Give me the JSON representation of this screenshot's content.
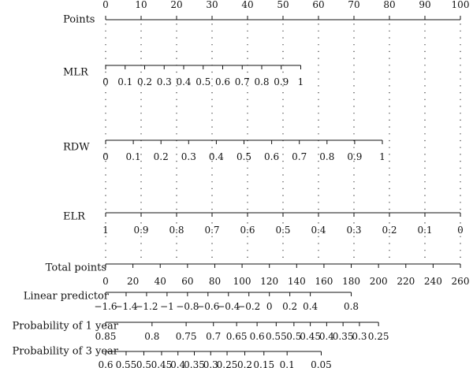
{
  "chart_data": {
    "type": "nomogram",
    "scales": [
      {
        "id": "points",
        "label": "Points",
        "kind": "top",
        "ticks": [
          {
            "text": "0",
            "v": 0
          },
          {
            "text": "10",
            "v": 10
          },
          {
            "text": "20",
            "v": 20
          },
          {
            "text": "30",
            "v": 30
          },
          {
            "text": "40",
            "v": 40
          },
          {
            "text": "50",
            "v": 50
          },
          {
            "text": "60",
            "v": 60
          },
          {
            "text": "70",
            "v": 70
          },
          {
            "text": "80",
            "v": 80
          },
          {
            "text": "90",
            "v": 90
          },
          {
            "text": "100",
            "v": 100
          }
        ]
      },
      {
        "id": "mlr",
        "label": "MLR",
        "kind": "variable",
        "ticks": [
          {
            "text": "0",
            "v": 0
          },
          {
            "text": "0.1",
            "v": 5.5
          },
          {
            "text": "0.2",
            "v": 11
          },
          {
            "text": "0.3",
            "v": 16.5
          },
          {
            "text": "0.4",
            "v": 22
          },
          {
            "text": "0.5",
            "v": 27.5
          },
          {
            "text": "0.6",
            "v": 33
          },
          {
            "text": "0.7",
            "v": 38.5
          },
          {
            "text": "0.8",
            "v": 44
          },
          {
            "text": "0.9",
            "v": 49.5
          },
          {
            "text": "1",
            "v": 55
          }
        ]
      },
      {
        "id": "rdw",
        "label": "RDW",
        "kind": "variable",
        "ticks": [
          {
            "text": "0",
            "v": 0
          },
          {
            "text": "0.1",
            "v": 7.8
          },
          {
            "text": "0.2",
            "v": 15.6
          },
          {
            "text": "0.3",
            "v": 23.4
          },
          {
            "text": "0.4",
            "v": 31.2
          },
          {
            "text": "0.5",
            "v": 39
          },
          {
            "text": "0.6",
            "v": 46.8
          },
          {
            "text": "0.7",
            "v": 54.6
          },
          {
            "text": "0.8",
            "v": 62.4
          },
          {
            "text": "0.9",
            "v": 70.2
          },
          {
            "text": "1",
            "v": 78
          }
        ]
      },
      {
        "id": "elr",
        "label": "ELR",
        "kind": "variable",
        "ticks": [
          {
            "text": "1",
            "v": 0
          },
          {
            "text": "0.9",
            "v": 10
          },
          {
            "text": "0.8",
            "v": 20
          },
          {
            "text": "0.7",
            "v": 30
          },
          {
            "text": "0.6",
            "v": 40
          },
          {
            "text": "0.5",
            "v": 50
          },
          {
            "text": "0.4",
            "v": 60
          },
          {
            "text": "0.3",
            "v": 70
          },
          {
            "text": "0.2",
            "v": 80
          },
          {
            "text": "0.1",
            "v": 90
          },
          {
            "text": "0",
            "v": 100
          }
        ]
      },
      {
        "id": "total_points",
        "label": "Total points",
        "kind": "total",
        "ticks": [
          {
            "text": "0",
            "v": 0
          },
          {
            "text": "20",
            "v": 20
          },
          {
            "text": "40",
            "v": 40
          },
          {
            "text": "60",
            "v": 60
          },
          {
            "text": "80",
            "v": 80
          },
          {
            "text": "100",
            "v": 100
          },
          {
            "text": "120",
            "v": 120
          },
          {
            "text": "140",
            "v": 140
          },
          {
            "text": "160",
            "v": 160
          },
          {
            "text": "180",
            "v": 180
          },
          {
            "text": "200",
            "v": 200
          },
          {
            "text": "220",
            "v": 220
          },
          {
            "text": "240",
            "v": 240
          },
          {
            "text": "260",
            "v": 260
          }
        ]
      },
      {
        "id": "linear_predictor",
        "label": "Linear predictor",
        "kind": "outcome",
        "ticks": [
          {
            "text": "−1.6",
            "v": 0
          },
          {
            "text": "−1.4",
            "v": 15
          },
          {
            "text": "−1.2",
            "v": 30
          },
          {
            "text": "−1",
            "v": 45
          },
          {
            "text": "−0.8",
            "v": 60
          },
          {
            "text": "−0.6",
            "v": 75
          },
          {
            "text": "−0.4",
            "v": 90
          },
          {
            "text": "−0.2",
            "v": 105
          },
          {
            "text": "0",
            "v": 120
          },
          {
            "text": "0.2",
            "v": 135
          },
          {
            "text": "0.4",
            "v": 150
          },
          {
            "text": "0.8",
            "v": 180
          }
        ]
      },
      {
        "id": "prob_1_year",
        "label": "Probability of 1 year",
        "kind": "outcome",
        "ticks": [
          {
            "text": "0.85",
            "v": 0
          },
          {
            "text": "0.8",
            "v": 34
          },
          {
            "text": "0.75",
            "v": 59
          },
          {
            "text": "0.7",
            "v": 79
          },
          {
            "text": "0.65",
            "v": 96
          },
          {
            "text": "0.6",
            "v": 111
          },
          {
            "text": "0.55",
            "v": 125
          },
          {
            "text": "0.5",
            "v": 138
          },
          {
            "text": "0.45",
            "v": 150
          },
          {
            "text": "0.4",
            "v": 162
          },
          {
            "text": "0.35",
            "v": 174
          },
          {
            "text": "0.3",
            "v": 186
          },
          {
            "text": "0.25",
            "v": 200
          }
        ]
      },
      {
        "id": "prob_3_year",
        "label": "Probability of 3 year",
        "kind": "outcome",
        "ticks": [
          {
            "text": "0.6",
            "v": 0
          },
          {
            "text": "0.55",
            "v": 15
          },
          {
            "text": "0.5",
            "v": 28
          },
          {
            "text": "0.45",
            "v": 41
          },
          {
            "text": "0.4",
            "v": 53
          },
          {
            "text": "0.35",
            "v": 65
          },
          {
            "text": "0.3",
            "v": 77
          },
          {
            "text": "0.25",
            "v": 89
          },
          {
            "text": "0.2",
            "v": 102
          },
          {
            "text": "0.15",
            "v": 116
          },
          {
            "text": "0.1",
            "v": 133
          },
          {
            "text": "0.05",
            "v": 158
          }
        ]
      }
    ],
    "gridlines": "dotted vertical at each 10 points",
    "legend": "none"
  }
}
